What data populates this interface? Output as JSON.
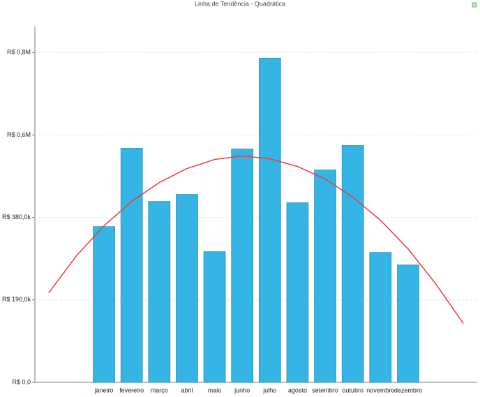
{
  "chart_data": {
    "type": "bar",
    "title": "Linha de Tendência - Quadrática",
    "categories": [
      null,
      null,
      "janeiro",
      "fevereiro",
      "março",
      "abril",
      "maio",
      "junho",
      "julho",
      "agosto",
      "setembro",
      "outubro",
      "novembro",
      "dezembro",
      null,
      null
    ],
    "series": [
      {
        "type": "bar",
        "color": "#35b5e5",
        "values": [
          null,
          null,
          359000,
          539400,
          417000,
          433100,
          301100,
          537800,
          747100,
          413800,
          489500,
          545800,
          299500,
          270500,
          null,
          null
        ]
      },
      {
        "type": "line",
        "color": "#e83c3c",
        "values": [
          206100,
          291400,
          360700,
          417000,
          460500,
          492700,
          513600,
          521700,
          515300,
          497500,
          468600,
          426700,
          373600,
          307500,
          227000,
          135300
        ]
      }
    ],
    "ylim": [
      0,
      820000
    ],
    "yticks": [
      {
        "value": 0,
        "label": "R$ 0,0"
      },
      {
        "value": 190000,
        "label": "R$ 190,0k"
      },
      {
        "value": 380000,
        "label": "R$ 380,0k"
      },
      {
        "value": 570000,
        "label": "R$ 0,6M"
      },
      {
        "value": 760000,
        "label": "R$ 0,8M"
      }
    ],
    "grid": true
  }
}
